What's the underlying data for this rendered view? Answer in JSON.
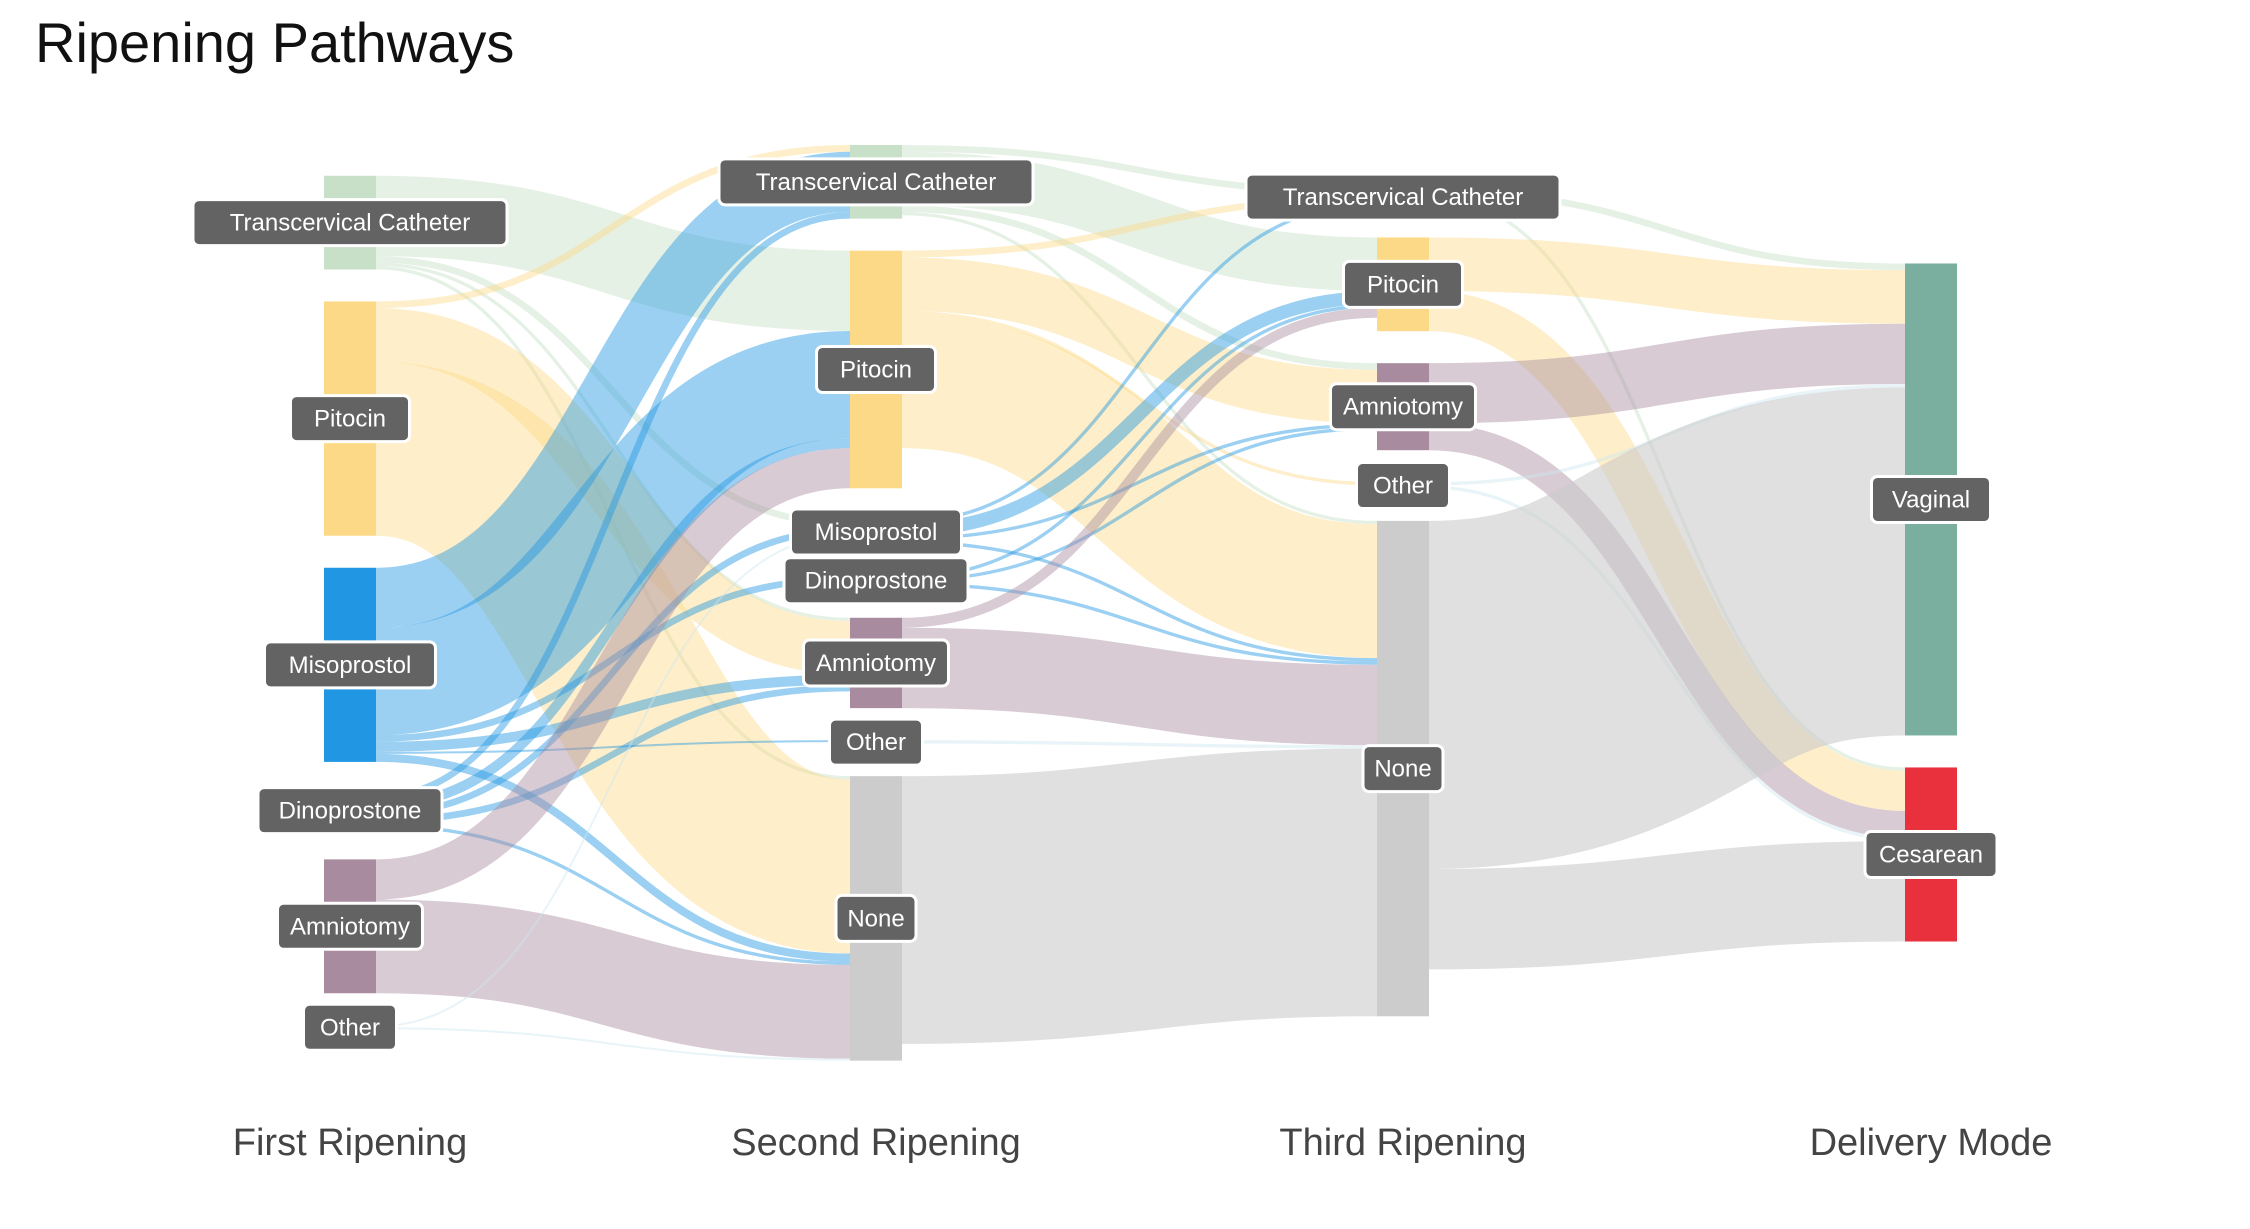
{
  "title": "Ripening Pathways",
  "chart_data": {
    "type": "sankey",
    "title": "Ripening Pathways",
    "stages": [
      "First Ripening",
      "Second Ripening",
      "Third Ripening",
      "Delivery Mode"
    ],
    "colors": {
      "Transcervical Catheter": "#c8dfc8",
      "Pitocin": "#fcd987",
      "Misoprostol": "#2196e3",
      "Dinoprostone": "#2196e3",
      "Amniotomy": "#a98b9f",
      "Other": "#cfe6ef",
      "None": "#cccccc",
      "Vaginal": "#7aaf9f",
      "Cesarean": "#e8313d"
    },
    "nodes": [
      {
        "id": "s1_cat",
        "stage": 0,
        "label": "Transcervical Catheter",
        "cat": "Transcervical Catheter"
      },
      {
        "id": "s1_pit",
        "stage": 0,
        "label": "Pitocin",
        "cat": "Pitocin"
      },
      {
        "id": "s1_miso",
        "stage": 0,
        "label": "Misoprostol",
        "cat": "Misoprostol"
      },
      {
        "id": "s1_dino",
        "stage": 0,
        "label": "Dinoprostone",
        "cat": "Dinoprostone"
      },
      {
        "id": "s1_amni",
        "stage": 0,
        "label": "Amniotomy",
        "cat": "Amniotomy"
      },
      {
        "id": "s1_other",
        "stage": 0,
        "label": "Other",
        "cat": "Other"
      },
      {
        "id": "s2_cat",
        "stage": 1,
        "label": "Transcervical Catheter",
        "cat": "Transcervical Catheter"
      },
      {
        "id": "s2_pit",
        "stage": 1,
        "label": "Pitocin",
        "cat": "Pitocin"
      },
      {
        "id": "s2_miso",
        "stage": 1,
        "label": "Misoprostol",
        "cat": "Misoprostol"
      },
      {
        "id": "s2_dino",
        "stage": 1,
        "label": "Dinoprostone",
        "cat": "Dinoprostone"
      },
      {
        "id": "s2_amni",
        "stage": 1,
        "label": "Amniotomy",
        "cat": "Amniotomy"
      },
      {
        "id": "s2_other",
        "stage": 1,
        "label": "Other",
        "cat": "Other"
      },
      {
        "id": "s2_none",
        "stage": 1,
        "label": "None",
        "cat": "None"
      },
      {
        "id": "s3_cat",
        "stage": 2,
        "label": "Transcervical Catheter",
        "cat": "Transcervical Catheter"
      },
      {
        "id": "s3_pit",
        "stage": 2,
        "label": "Pitocin",
        "cat": "Pitocin"
      },
      {
        "id": "s3_amni",
        "stage": 2,
        "label": "Amniotomy",
        "cat": "Amniotomy"
      },
      {
        "id": "s3_other",
        "stage": 2,
        "label": "Other",
        "cat": "Other"
      },
      {
        "id": "s3_none",
        "stage": 2,
        "label": "None",
        "cat": "None"
      },
      {
        "id": "vag",
        "stage": 3,
        "label": "Vaginal",
        "cat": "Vaginal"
      },
      {
        "id": "ces",
        "stage": 3,
        "label": "Cesarean",
        "cat": "Cesarean"
      }
    ],
    "links": [
      {
        "source": "s1_cat",
        "target": "s2_pit",
        "value": 12
      },
      {
        "source": "s1_cat",
        "target": "s2_miso",
        "value": 1
      },
      {
        "source": "s1_cat",
        "target": "s2_amni",
        "value": 0.5
      },
      {
        "source": "s1_cat",
        "target": "s2_none",
        "value": 0.5
      },
      {
        "source": "s1_pit",
        "target": "s2_cat",
        "value": 1
      },
      {
        "source": "s1_pit",
        "target": "s2_amni",
        "value": 8
      },
      {
        "source": "s1_pit",
        "target": "s2_none",
        "value": 26
      },
      {
        "source": "s1_miso",
        "target": "s2_cat",
        "value": 9
      },
      {
        "source": "s1_miso",
        "target": "s2_pit",
        "value": 16
      },
      {
        "source": "s1_miso",
        "target": "s2_dino",
        "value": 1
      },
      {
        "source": "s1_miso",
        "target": "s2_amni",
        "value": 1.5
      },
      {
        "source": "s1_miso",
        "target": "s2_other",
        "value": 0.3
      },
      {
        "source": "s1_miso",
        "target": "s2_none",
        "value": 1.2
      },
      {
        "source": "s1_dino",
        "target": "s2_cat",
        "value": 1
      },
      {
        "source": "s1_dino",
        "target": "s2_pit",
        "value": 1.5
      },
      {
        "source": "s1_dino",
        "target": "s2_miso",
        "value": 1
      },
      {
        "source": "s1_dino",
        "target": "s2_amni",
        "value": 1
      },
      {
        "source": "s1_dino",
        "target": "s2_none",
        "value": 0.5
      },
      {
        "source": "s1_amni",
        "target": "s2_pit",
        "value": 6
      },
      {
        "source": "s1_amni",
        "target": "s2_none",
        "value": 14
      },
      {
        "source": "s1_other",
        "target": "s2_miso",
        "value": 0.3
      },
      {
        "source": "s1_other",
        "target": "s2_none",
        "value": 0.3
      },
      {
        "source": "s2_cat",
        "target": "s3_cat",
        "value": 1
      },
      {
        "source": "s2_cat",
        "target": "s3_pit",
        "value": 8
      },
      {
        "source": "s2_cat",
        "target": "s3_amni",
        "value": 1
      },
      {
        "source": "s2_cat",
        "target": "s3_none",
        "value": 0.5
      },
      {
        "source": "s2_pit",
        "target": "s3_cat",
        "value": 1
      },
      {
        "source": "s2_pit",
        "target": "s3_amni",
        "value": 8
      },
      {
        "source": "s2_pit",
        "target": "s3_other",
        "value": 0.5
      },
      {
        "source": "s2_pit",
        "target": "s3_none",
        "value": 20
      },
      {
        "source": "s2_miso",
        "target": "s3_cat",
        "value": 0.5
      },
      {
        "source": "s2_miso",
        "target": "s3_pit",
        "value": 2
      },
      {
        "source": "s2_miso",
        "target": "s3_amni",
        "value": 0.5
      },
      {
        "source": "s2_miso",
        "target": "s3_none",
        "value": 0.5
      },
      {
        "source": "s2_dino",
        "target": "s3_pit",
        "value": 0.5
      },
      {
        "source": "s2_dino",
        "target": "s3_amni",
        "value": 0.5
      },
      {
        "source": "s2_dino",
        "target": "s3_none",
        "value": 0.5
      },
      {
        "source": "s2_amni",
        "target": "s3_pit",
        "value": 1.5
      },
      {
        "source": "s2_amni",
        "target": "s3_none",
        "value": 12
      },
      {
        "source": "s2_other",
        "target": "s3_none",
        "value": 0.5
      },
      {
        "source": "s2_none",
        "target": "s3_none",
        "value": 40
      },
      {
        "source": "s3_cat",
        "target": "vag",
        "value": 1
      },
      {
        "source": "s3_cat",
        "target": "ces",
        "value": 0.5
      },
      {
        "source": "s3_pit",
        "target": "vag",
        "value": 8
      },
      {
        "source": "s3_pit",
        "target": "ces",
        "value": 6
      },
      {
        "source": "s3_amni",
        "target": "vag",
        "value": 9
      },
      {
        "source": "s3_amni",
        "target": "ces",
        "value": 4
      },
      {
        "source": "s3_other",
        "target": "vag",
        "value": 0.5
      },
      {
        "source": "s3_other",
        "target": "ces",
        "value": 0.5
      },
      {
        "source": "s3_none",
        "target": "vag",
        "value": 52
      },
      {
        "source": "s3_none",
        "target": "ces",
        "value": 15
      }
    ]
  }
}
